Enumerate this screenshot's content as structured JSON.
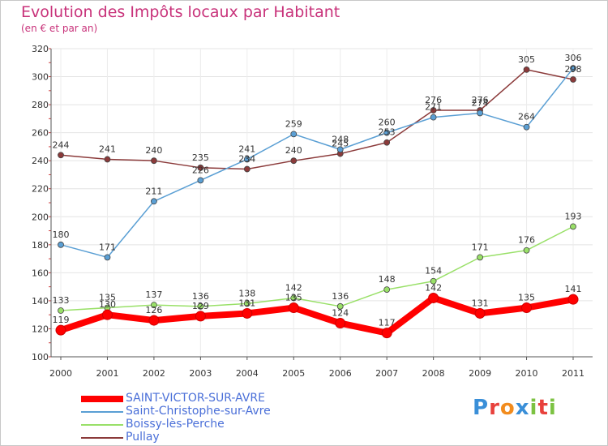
{
  "title": "Evolution des Impôts locaux par Habitant",
  "subtitle": "(en € et par an)",
  "logo": {
    "text": "Proxiti",
    "colors": [
      "#3a8fd8",
      "#e8413c",
      "#f28c1e",
      "#3a8fd8",
      "#7cc242",
      "#e8413c",
      "#7cc242"
    ]
  },
  "chart_data": {
    "type": "line",
    "title": "Evolution des Impôts locaux par Habitant",
    "subtitle": "(en € et par an)",
    "categories": [
      "2000",
      "2001",
      "2002",
      "2003",
      "2004",
      "2005",
      "2006",
      "2007",
      "2008",
      "2009",
      "2010",
      "2011"
    ],
    "ylim": [
      100,
      320
    ],
    "yticks": [
      100,
      120,
      140,
      160,
      180,
      200,
      220,
      240,
      260,
      280,
      300,
      320
    ],
    "grid": true,
    "legend_position": "bottom-left",
    "series": [
      {
        "name": "SAINT-VICTOR-SUR-AVRE",
        "color": "#ff0000",
        "values": [
          119,
          130,
          126,
          129,
          131,
          135,
          124,
          117,
          142,
          131,
          135,
          141
        ],
        "bold": true
      },
      {
        "name": "Saint-Christophe-sur-Avre",
        "color": "#5a9fd4",
        "values": [
          180,
          171,
          211,
          226,
          241,
          259,
          248,
          260,
          271,
          274,
          264,
          306
        ]
      },
      {
        "name": "Boissy-lès-Perche",
        "color": "#99e068",
        "values": [
          133,
          135,
          137,
          136,
          138,
          142,
          136,
          148,
          154,
          171,
          176,
          193
        ]
      },
      {
        "name": "Pullay",
        "color": "#8b3a3a",
        "values": [
          244,
          241,
          240,
          235,
          234,
          240,
          245,
          253,
          276,
          276,
          305,
          298
        ]
      }
    ]
  }
}
